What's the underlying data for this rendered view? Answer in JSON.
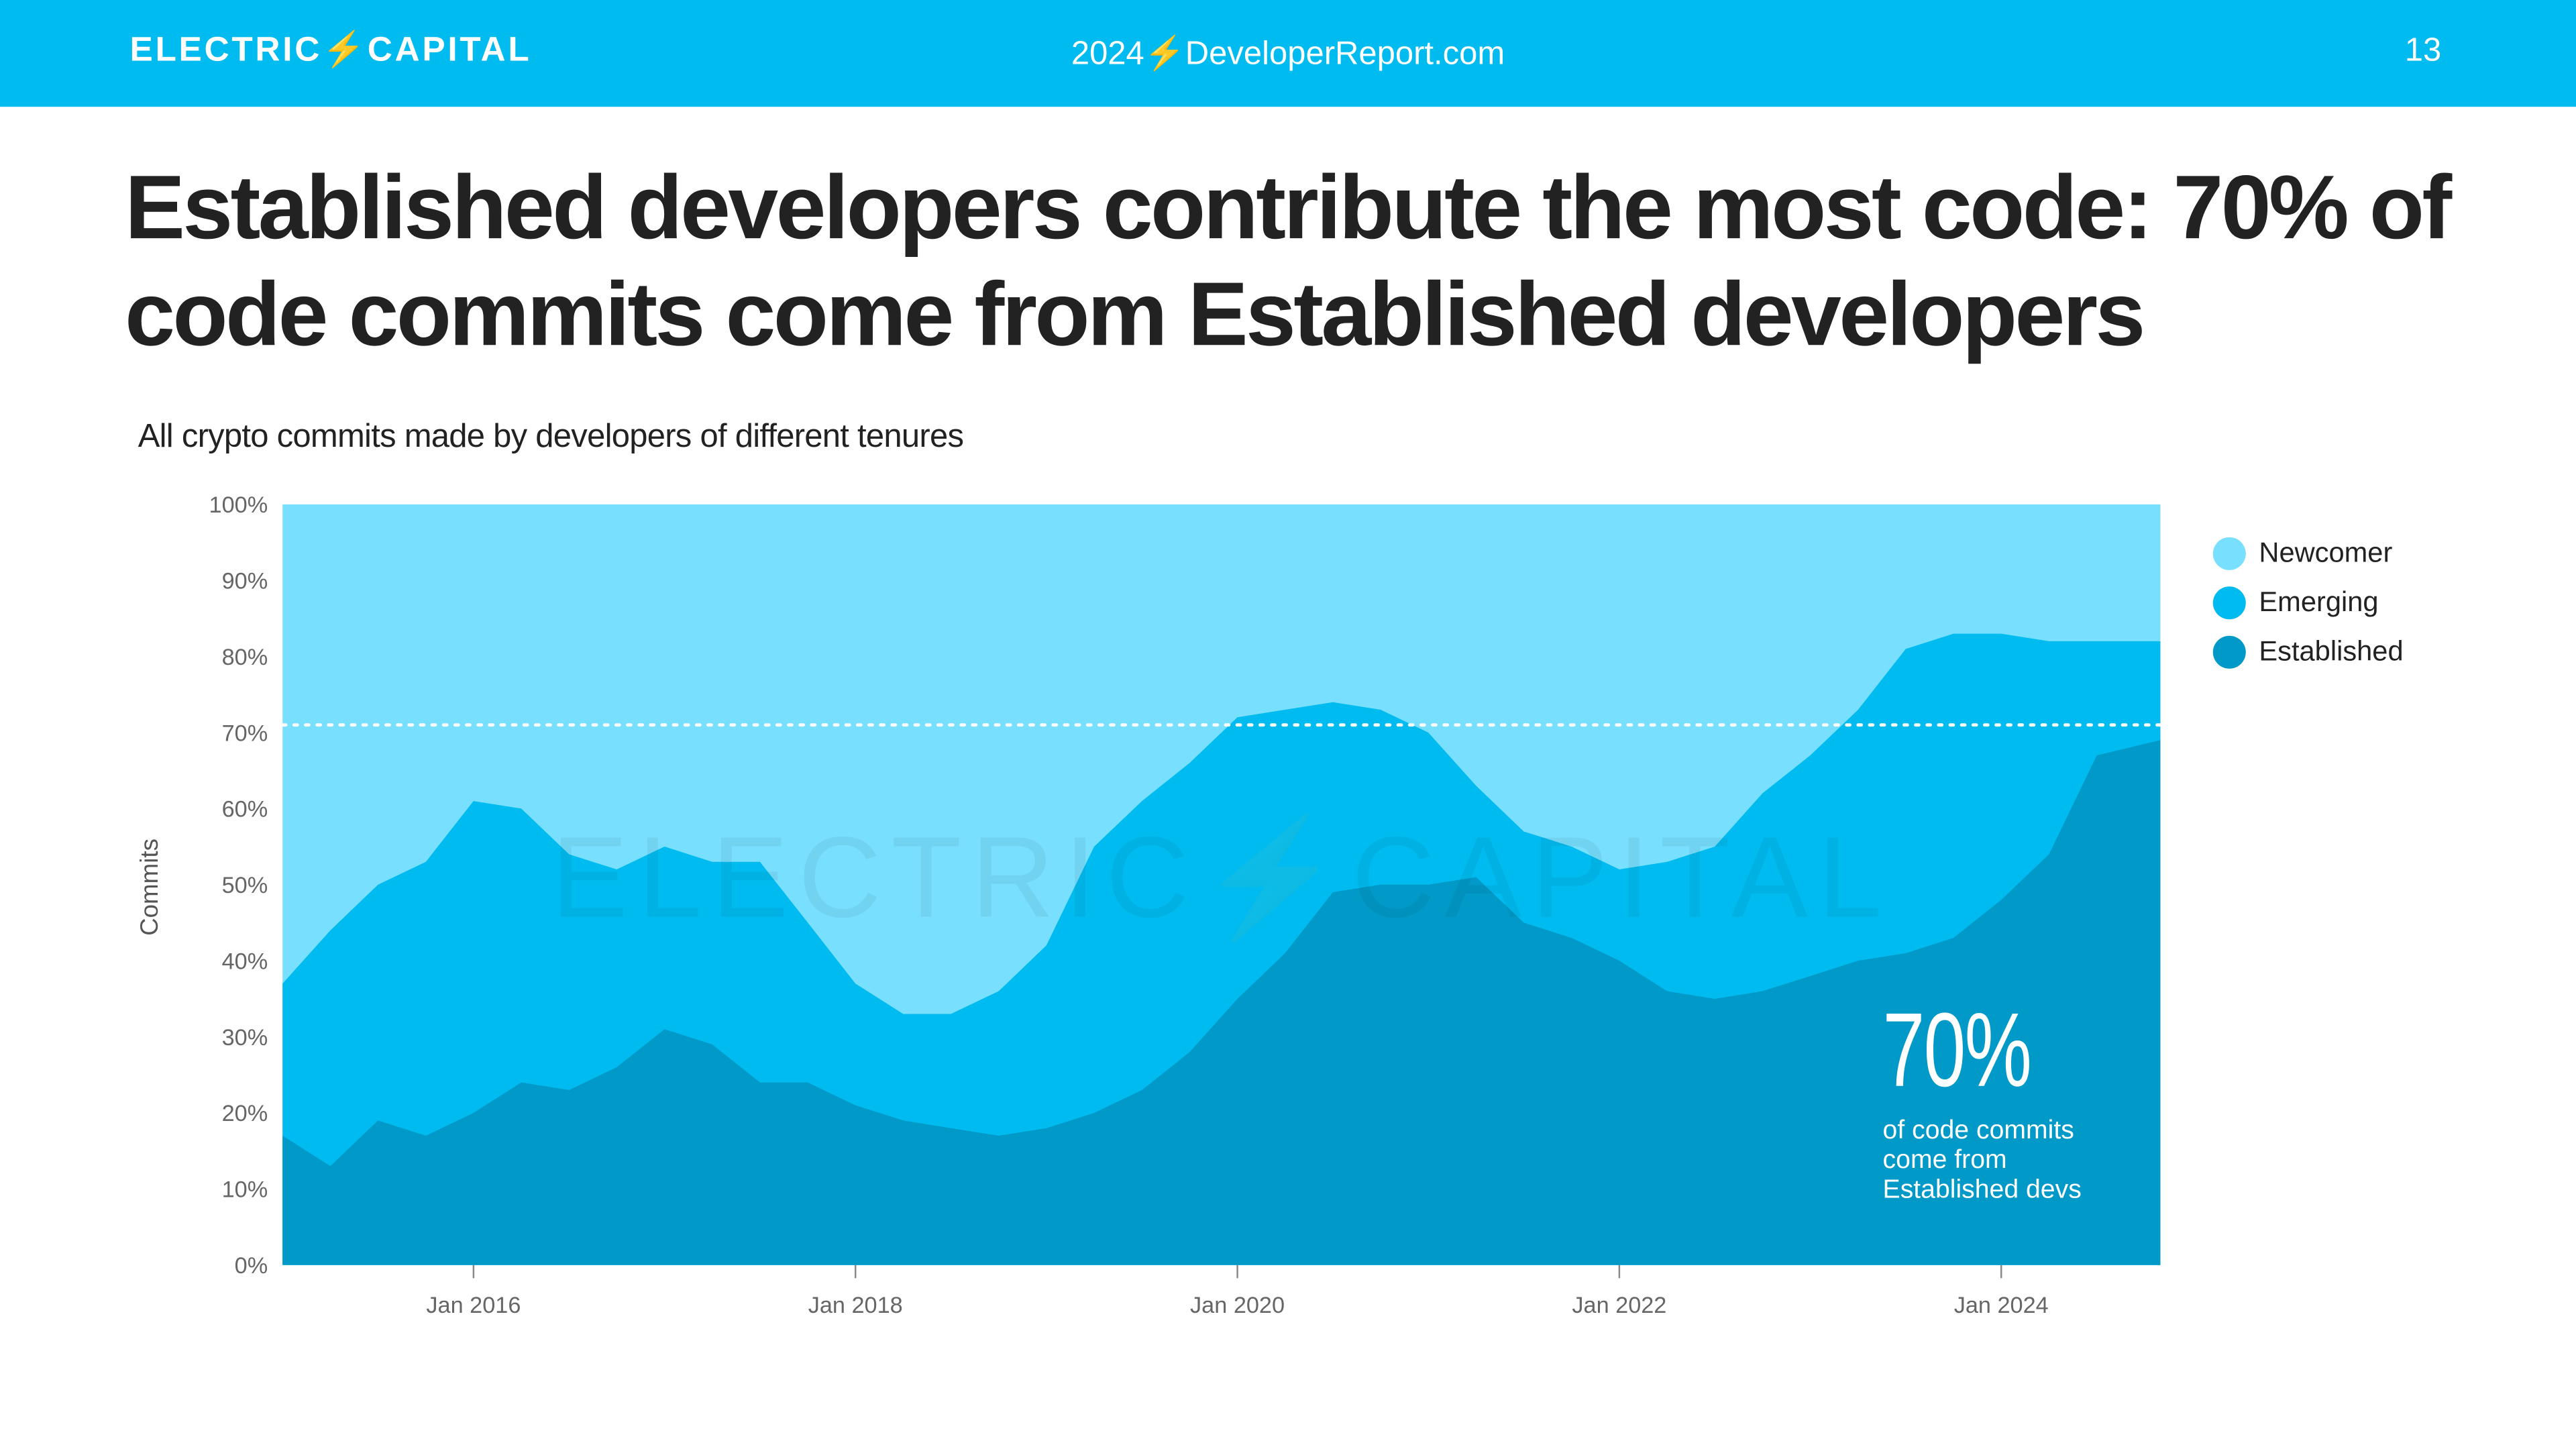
{
  "header": {
    "brand": "ELECTRIC⚡CAPITAL",
    "url": "2024⚡DeveloperReport.com",
    "page_number": "13"
  },
  "title": "Established developers contribute the most code: 70% of code commits come from Established developers",
  "chart_data": {
    "type": "area",
    "stacked": true,
    "title": "All crypto commits made by developers of different tenures",
    "ylabel": "Commits",
    "xlabel": "",
    "ylim": [
      0,
      100
    ],
    "yticks": [
      "0%",
      "10%",
      "20%",
      "30%",
      "40%",
      "50%",
      "60%",
      "70%",
      "80%",
      "90%",
      "100%"
    ],
    "xticks": [
      {
        "date": "2016-01",
        "label": "Jan 2016"
      },
      {
        "date": "2018-01",
        "label": "Jan 2018"
      },
      {
        "date": "2020-01",
        "label": "Jan 2020"
      },
      {
        "date": "2022-01",
        "label": "Jan 2022"
      },
      {
        "date": "2024-01",
        "label": "Jan 2024"
      }
    ],
    "x": [
      "2015-01",
      "2015-04",
      "2015-07",
      "2015-10",
      "2016-01",
      "2016-04",
      "2016-07",
      "2016-10",
      "2017-01",
      "2017-04",
      "2017-07",
      "2017-10",
      "2018-01",
      "2018-04",
      "2018-07",
      "2018-10",
      "2019-01",
      "2019-04",
      "2019-07",
      "2019-10",
      "2020-01",
      "2020-04",
      "2020-07",
      "2020-10",
      "2021-01",
      "2021-04",
      "2021-07",
      "2021-10",
      "2022-01",
      "2022-04",
      "2022-07",
      "2022-10",
      "2023-01",
      "2023-04",
      "2023-07",
      "2023-10",
      "2024-01",
      "2024-04",
      "2024-07",
      "2024-10"
    ],
    "series": [
      {
        "name": "Established",
        "color": "#0099C8",
        "values": [
          17,
          13,
          19,
          17,
          20,
          24,
          23,
          26,
          31,
          29,
          24,
          24,
          21,
          19,
          18,
          17,
          18,
          20,
          23,
          28,
          35,
          41,
          49,
          50,
          50,
          51,
          45,
          43,
          40,
          36,
          35,
          36,
          38,
          40,
          41,
          43,
          48,
          54,
          67,
          69
        ]
      },
      {
        "name": "Emerging",
        "color": "#00BBF0",
        "values": [
          20,
          31,
          31,
          36,
          41,
          36,
          31,
          26,
          24,
          24,
          29,
          21,
          16,
          14,
          15,
          19,
          24,
          35,
          38,
          38,
          37,
          32,
          25,
          23,
          20,
          12,
          12,
          12,
          12,
          17,
          20,
          26,
          29,
          33,
          40,
          40,
          35,
          28,
          15,
          13
        ]
      },
      {
        "name": "Newcomer",
        "color": "#79DFFE",
        "values": [
          63,
          56,
          50,
          47,
          39,
          40,
          46,
          48,
          45,
          47,
          47,
          55,
          63,
          67,
          67,
          64,
          58,
          45,
          39,
          34,
          28,
          27,
          26,
          27,
          30,
          37,
          43,
          45,
          48,
          47,
          45,
          38,
          33,
          27,
          19,
          17,
          17,
          18,
          18,
          18
        ]
      }
    ],
    "reference_line": {
      "value": 71,
      "style": "dotted",
      "color": "#FFFFFF"
    },
    "legend": {
      "placement": "right",
      "items": [
        "Newcomer",
        "Emerging",
        "Established"
      ]
    },
    "annotation": {
      "value": "70%",
      "text": "of code commits come from Established devs"
    },
    "watermark": "ELECTRIC⚡CAPITAL",
    "grid": false
  }
}
